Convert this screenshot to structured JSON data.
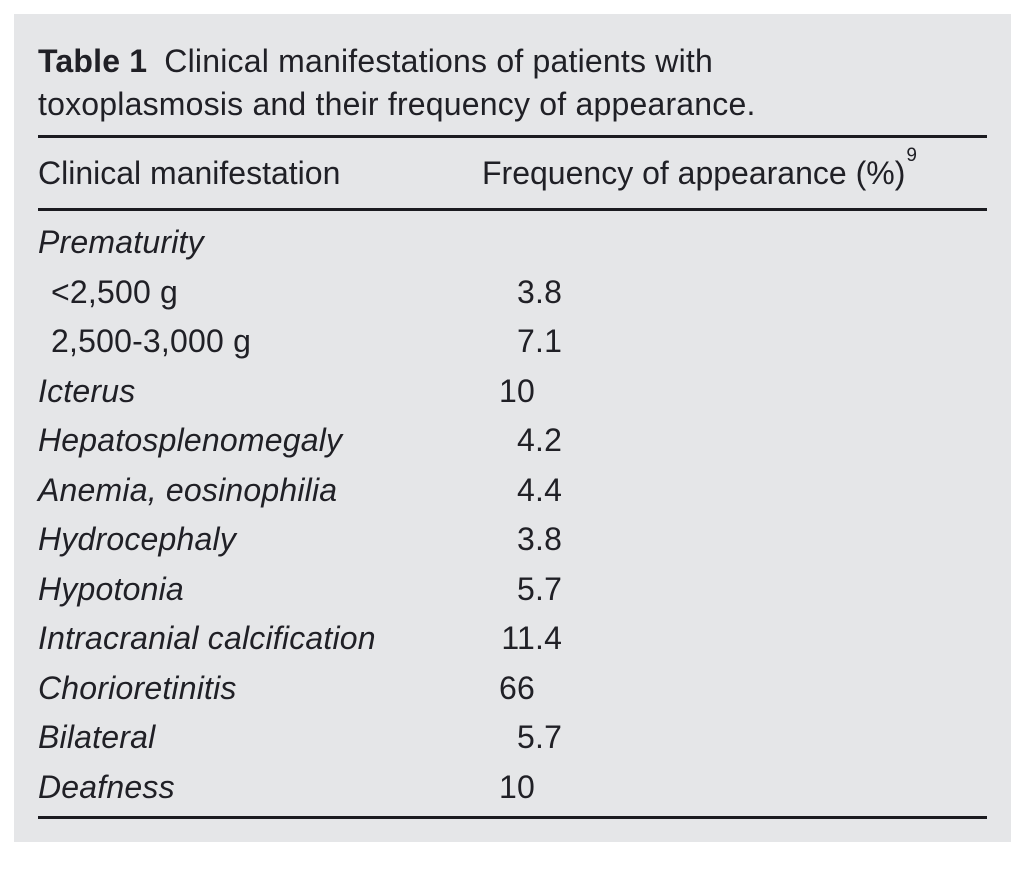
{
  "page": {
    "background": "#ffffff",
    "panel_background": "#e5e6e8",
    "text_color": "#202026",
    "rule_color": "#1b1b20"
  },
  "table": {
    "label": "Table 1",
    "caption": "Clinical manifestations of patients with toxoplasmosis and their frequency of appearance.",
    "columns": {
      "manifestation": "Clinical manifestation",
      "frequency": "Frequency of appearance (%)",
      "frequency_reference": "9"
    },
    "rows": [
      {
        "name": "Prematurity",
        "value": "",
        "group_header": true
      },
      {
        "name": "<2,500 g",
        "value": "3.8",
        "indent": true
      },
      {
        "name": "2,500-3,000 g",
        "value": "7.1",
        "indent": true
      },
      {
        "name": "Icterus",
        "value": "10"
      },
      {
        "name": "Hepatosplenomegaly",
        "value": "4.2"
      },
      {
        "name": "Anemia, eosinophilia",
        "value": "4.4"
      },
      {
        "name": "Hydrocephaly",
        "value": "3.8"
      },
      {
        "name": "Hypotonia",
        "value": "5.7"
      },
      {
        "name": "Intracranial calcification",
        "value": "11.4"
      },
      {
        "name": "Chorioretinitis",
        "value": "66"
      },
      {
        "name": "Bilateral",
        "value": "5.7"
      },
      {
        "name": "Deafness",
        "value": "10"
      }
    ]
  }
}
